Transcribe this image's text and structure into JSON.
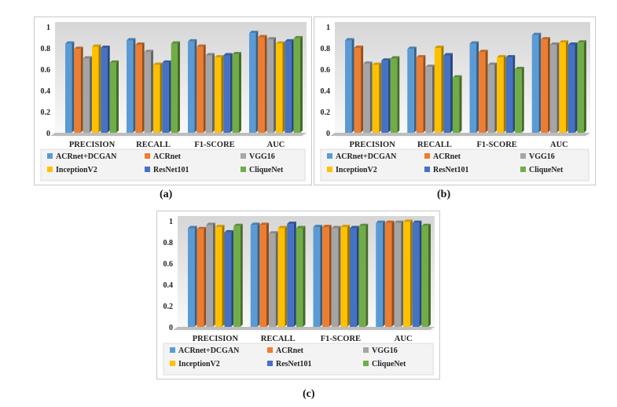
{
  "colors": {
    "series": [
      "#5b9bd5",
      "#ed7d31",
      "#a5a5a5",
      "#ffc000",
      "#4472c4",
      "#70ad47"
    ],
    "plot_top": "#d6d6d6",
    "plot_bottom": "#fafafa"
  },
  "captions": [
    "(a)",
    "(b)",
    "(c)"
  ],
  "chart_data": [
    {
      "type": "bar",
      "panel": "(a)",
      "categories": [
        "PRECISION",
        "RECALL",
        "F1-SCORE",
        "AUC"
      ],
      "ylim": [
        0,
        1
      ],
      "yticks": [
        "0",
        "0.2",
        "0.4",
        "0.6",
        "0.8",
        "1"
      ],
      "series": [
        {
          "name": "ACRnet+DCGAN",
          "values": [
            0.84,
            0.87,
            0.86,
            0.94
          ]
        },
        {
          "name": "ACRnet",
          "values": [
            0.79,
            0.83,
            0.81,
            0.9
          ]
        },
        {
          "name": "VGG16",
          "values": [
            0.7,
            0.76,
            0.73,
            0.88
          ]
        },
        {
          "name": "InceptionV2",
          "values": [
            0.81,
            0.64,
            0.71,
            0.84
          ]
        },
        {
          "name": "ResNet101",
          "values": [
            0.8,
            0.66,
            0.73,
            0.86
          ]
        },
        {
          "name": "CliqueNet",
          "values": [
            0.66,
            0.84,
            0.74,
            0.89
          ]
        }
      ]
    },
    {
      "type": "bar",
      "panel": "(b)",
      "categories": [
        "PRECISION",
        "RECALL",
        "F1-SCORE",
        "AUC"
      ],
      "ylim": [
        0,
        1
      ],
      "yticks": [
        "0",
        "0.2",
        "0.4",
        "0.6",
        "0.8",
        "1"
      ],
      "series": [
        {
          "name": "ACRnet+DCGAN",
          "values": [
            0.87,
            0.79,
            0.84,
            0.92
          ]
        },
        {
          "name": "ACRnet",
          "values": [
            0.8,
            0.71,
            0.76,
            0.88
          ]
        },
        {
          "name": "VGG16",
          "values": [
            0.65,
            0.62,
            0.64,
            0.83
          ]
        },
        {
          "name": "InceptionV2",
          "values": [
            0.64,
            0.8,
            0.71,
            0.85
          ]
        },
        {
          "name": "ResNet101",
          "values": [
            0.68,
            0.73,
            0.71,
            0.83
          ]
        },
        {
          "name": "CliqueNet",
          "values": [
            0.7,
            0.52,
            0.6,
            0.85
          ]
        }
      ]
    },
    {
      "type": "bar",
      "panel": "(c)",
      "categories": [
        "PRECISION",
        "RECALL",
        "F1-SCORE",
        "AUC"
      ],
      "ylim": [
        0,
        1
      ],
      "yticks": [
        "0",
        "0.2",
        "0.4",
        "0.6",
        "0.8",
        "1"
      ],
      "series": [
        {
          "name": "ACRnet+DCGAN",
          "values": [
            0.93,
            0.96,
            0.94,
            0.98
          ]
        },
        {
          "name": "ACRnet",
          "values": [
            0.92,
            0.96,
            0.94,
            0.98
          ]
        },
        {
          "name": "VGG16",
          "values": [
            0.96,
            0.88,
            0.93,
            0.98
          ]
        },
        {
          "name": "InceptionV2",
          "values": [
            0.94,
            0.93,
            0.94,
            0.99
          ]
        },
        {
          "name": "ResNet101",
          "values": [
            0.89,
            0.97,
            0.93,
            0.98
          ]
        },
        {
          "name": "CliqueNet",
          "values": [
            0.95,
            0.93,
            0.95,
            0.95
          ]
        }
      ]
    }
  ]
}
